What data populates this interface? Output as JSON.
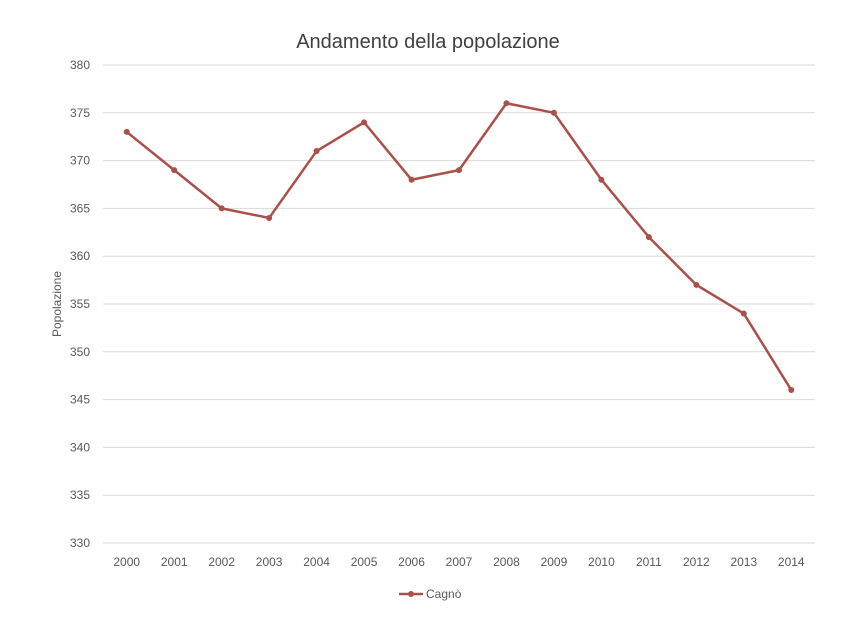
{
  "chart_data": {
    "type": "line",
    "title": "Andamento della popolazione",
    "xlabel": "",
    "ylabel": "Popolazione",
    "categories": [
      "2000",
      "2001",
      "2002",
      "2003",
      "2004",
      "2005",
      "2006",
      "2007",
      "2008",
      "2009",
      "2010",
      "2011",
      "2012",
      "2013",
      "2014"
    ],
    "series": [
      {
        "name": "Cagnò",
        "color": "#a9504a",
        "values": [
          373,
          369,
          365,
          364,
          371,
          374,
          368,
          369,
          376,
          375,
          368,
          362,
          357,
          354,
          346
        ]
      }
    ],
    "ylim": [
      330,
      380
    ],
    "yticks": [
      "330",
      "335",
      "340",
      "345",
      "350",
      "355",
      "360",
      "365",
      "370",
      "375",
      "380"
    ],
    "grid": true,
    "legend_position": "bottom"
  }
}
